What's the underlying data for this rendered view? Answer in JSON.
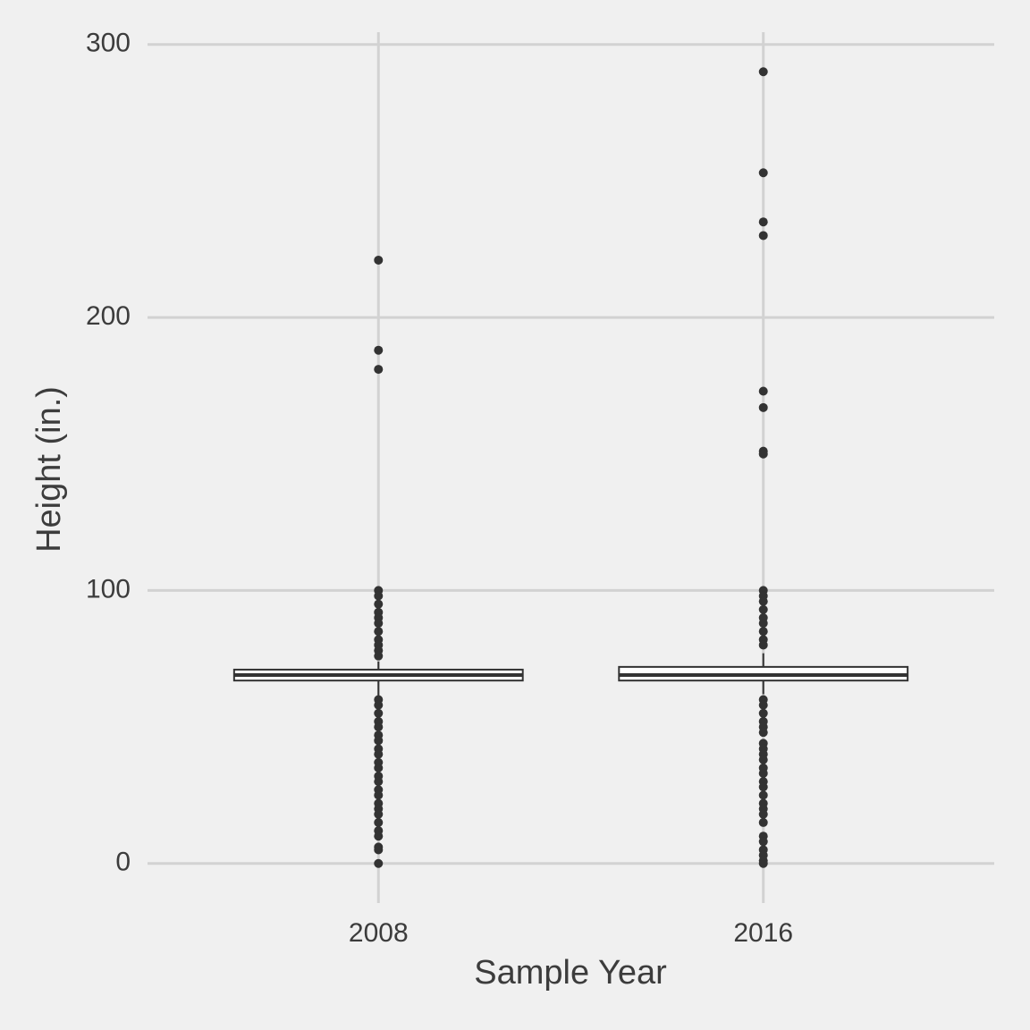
{
  "chart_data": {
    "type": "box",
    "x_label": "Sample Year",
    "y_label": "Height (in.)",
    "categories": [
      "2008",
      "2016"
    ],
    "boxes": [
      {
        "whisker_low": 61,
        "q1": 67,
        "median": 69,
        "q3": 71,
        "whisker_high": 74,
        "outliers": [
          221,
          188,
          181,
          100,
          98,
          95,
          92,
          90,
          88,
          85,
          82,
          80,
          78,
          76,
          60,
          58,
          55,
          52,
          50,
          47,
          45,
          42,
          40,
          37,
          35,
          32,
          30,
          27,
          25,
          22,
          20,
          18,
          15,
          12,
          10,
          6,
          5,
          0
        ]
      },
      {
        "whisker_low": 62,
        "q1": 67,
        "median": 69,
        "q3": 72,
        "whisker_high": 77,
        "outliers": [
          290,
          253,
          235,
          230,
          173,
          167,
          151,
          150,
          100,
          98,
          96,
          93,
          90,
          88,
          85,
          82,
          80,
          60,
          58,
          55,
          52,
          50,
          48,
          44,
          42,
          40,
          38,
          35,
          33,
          30,
          28,
          25,
          22,
          20,
          18,
          15,
          10,
          8,
          5,
          3,
          1,
          0
        ]
      }
    ],
    "box_fill": "#ffffff",
    "line_color": "#333333",
    "point_color": "#333333",
    "ylim": [
      -14.5,
      304.5
    ],
    "yticks": [
      0,
      100,
      200,
      300
    ],
    "grid": true
  }
}
